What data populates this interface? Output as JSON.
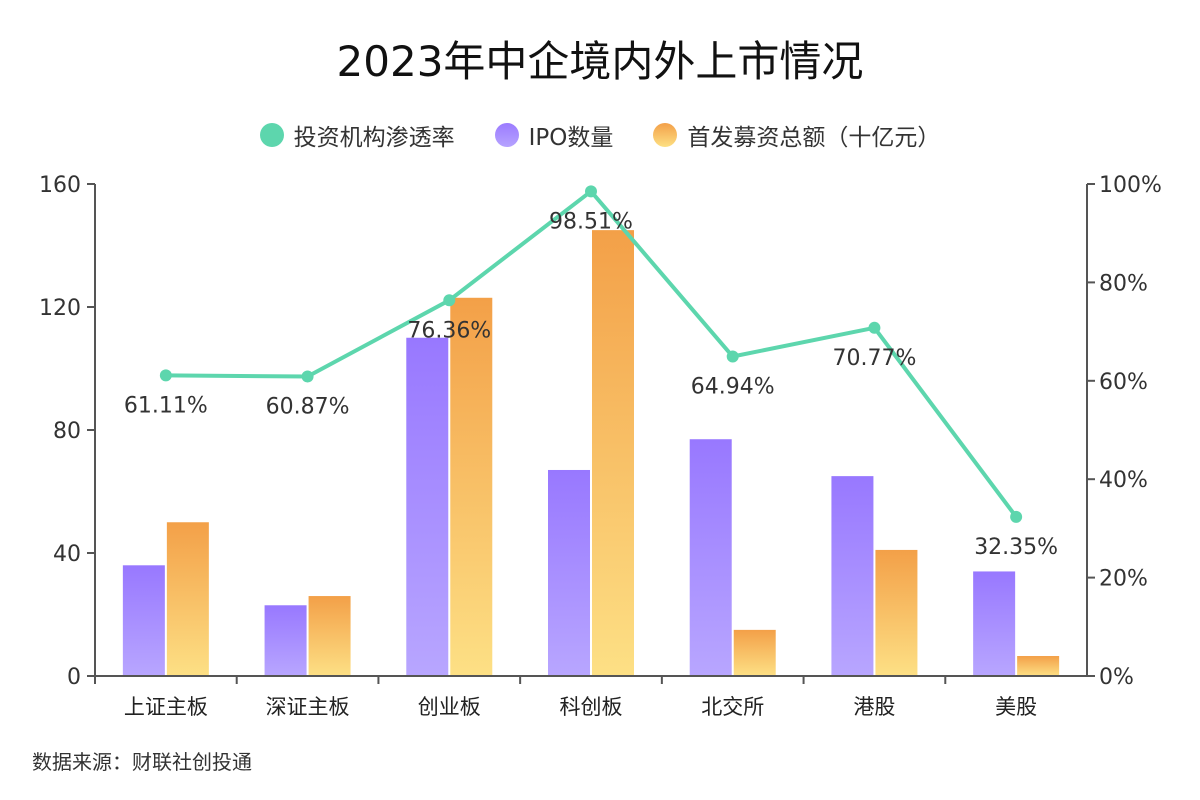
{
  "chart_data": {
    "type": "bar",
    "title": "2023年中企境内外上市情况",
    "categories": [
      "上证主板",
      "深证主板",
      "创业板",
      "科创板",
      "北交所",
      "港股",
      "美股"
    ],
    "series": [
      {
        "name": "投资机构渗透率",
        "type": "line",
        "axis": "right",
        "values": [
          61.11,
          60.87,
          76.36,
          98.51,
          64.94,
          70.77,
          32.35
        ],
        "labels": [
          "61.11%",
          "60.87%",
          "76.36%",
          "98.51%",
          "64.94%",
          "70.77%",
          "32.35%"
        ],
        "color": "#5dd6ad"
      },
      {
        "name": "IPO数量",
        "type": "bar",
        "axis": "left",
        "values": [
          36,
          23,
          110,
          67,
          77,
          65,
          34
        ],
        "color": "#9b7bff"
      },
      {
        "name": "首发募资总额（十亿元）",
        "type": "bar",
        "axis": "left",
        "values": [
          50,
          26,
          123,
          145,
          15,
          41,
          6.5
        ],
        "color": "#f3a049"
      }
    ],
    "ylim": [
      0,
      160
    ],
    "yticks": [
      "0",
      "40",
      "80",
      "120",
      "160"
    ],
    "y2lim": [
      0,
      100
    ],
    "y2ticks": [
      "0%",
      "20%",
      "40%",
      "60%",
      "80%",
      "100%"
    ],
    "legend_position": "top"
  },
  "source": "数据来源：财联社创投通"
}
